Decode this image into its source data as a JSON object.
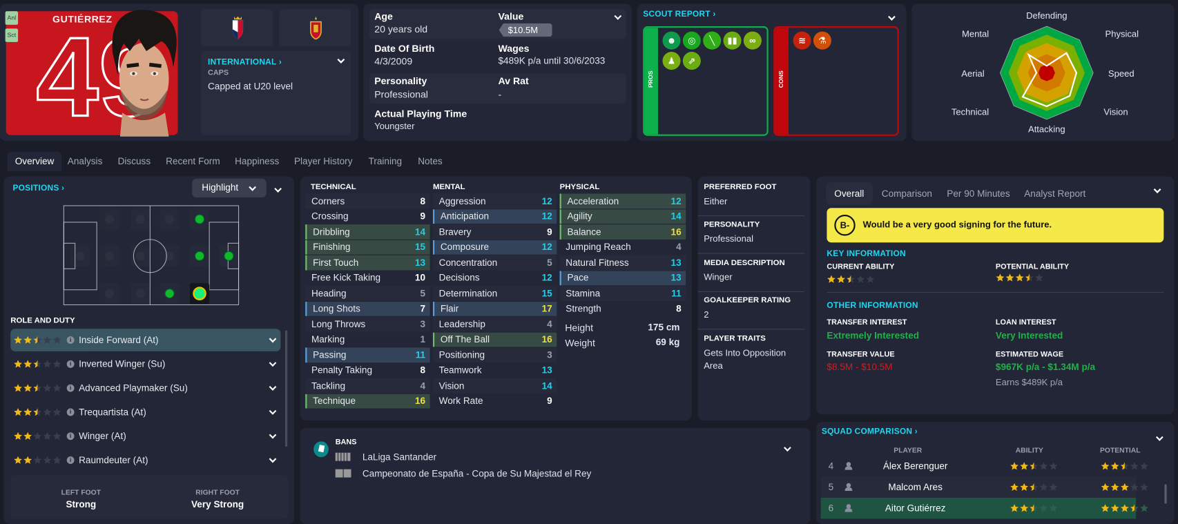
{
  "player": {
    "surname": "GUTIÉRREZ",
    "shirt_number": "49",
    "badges": [
      "Anl",
      "Sct"
    ],
    "shirt_color": "#c8161e"
  },
  "international": {
    "title": "INTERNATIONAL",
    "caps_label": "CAPS",
    "caps_value": "Capped at U20 level"
  },
  "details": {
    "age_label": "Age",
    "age": "20 years old",
    "value_label": "Value",
    "value": "$10.5M",
    "dob_label": "Date Of Birth",
    "dob": "4/3/2009",
    "wages_label": "Wages",
    "wages": "$489K p/a until 30/6/2033",
    "personality_label": "Personality",
    "personality": "Professional",
    "avrat_label": "Av Rat",
    "avrat": "-",
    "playing_time_label": "Actual Playing Time",
    "playing_time": "Youngster"
  },
  "scout_report": {
    "title": "SCOUT REPORT",
    "pros_label": "PROS",
    "cons_label": "CONS",
    "pros_icons": [
      {
        "icon": "head-icon",
        "color": "#0f9a4e"
      },
      {
        "icon": "target-icon",
        "color": "#18a71e"
      },
      {
        "icon": "pen-icon",
        "color": "#2fae18"
      },
      {
        "icon": "team-icon",
        "color": "#6aac12"
      },
      {
        "icon": "chain-icon",
        "color": "#7aae12"
      },
      {
        "icon": "foot-icon",
        "color": "#7aae12"
      },
      {
        "icon": "arrows-icon",
        "color": "#6aac12"
      }
    ],
    "cons_icons": [
      {
        "icon": "spring-icon",
        "color": "#c4220c"
      },
      {
        "icon": "flask-icon",
        "color": "#d2500a"
      }
    ]
  },
  "radar": {
    "axes": [
      "Defending",
      "Physical",
      "Speed",
      "Vision",
      "Attacking",
      "Technical",
      "Aerial",
      "Mental"
    ],
    "values": [
      0.15,
      0.6,
      0.64,
      0.7,
      0.72,
      0.73,
      0.22,
      0.55
    ],
    "ring_colors": [
      "#00a844",
      "#7cb000",
      "#d4a200",
      "#d27a00",
      "#c00000"
    ]
  },
  "tabs": [
    "Overview",
    "Analysis",
    "Discuss",
    "Recent Form",
    "Happiness",
    "Player History",
    "Training",
    "Notes"
  ],
  "positions": {
    "title": "POSITIONS",
    "highlight_label": "Highlight",
    "role_title": "ROLE AND DUTY",
    "roles": [
      {
        "name": "Inside Forward (At)",
        "stars": 2.5,
        "selected": true
      },
      {
        "name": "Inverted Winger (Su)",
        "stars": 2.5
      },
      {
        "name": "Advanced Playmaker (Su)",
        "stars": 2.5
      },
      {
        "name": "Trequartista (At)",
        "stars": 2.5
      },
      {
        "name": "Winger (At)",
        "stars": 2
      },
      {
        "name": "Raumdeuter (At)",
        "stars": 2
      }
    ],
    "left_foot_label": "LEFT FOOT",
    "left_foot": "Strong",
    "right_foot_label": "RIGHT FOOT",
    "right_foot": "Very Strong"
  },
  "attributes": {
    "technical_title": "TECHNICAL",
    "mental_title": "MENTAL",
    "physical_title": "PHYSICAL",
    "technical": [
      {
        "name": "Corners",
        "value": 8
      },
      {
        "name": "Crossing",
        "value": 9
      },
      {
        "name": "Dribbling",
        "value": 14,
        "hl": "key"
      },
      {
        "name": "Finishing",
        "value": 15,
        "hl": "key"
      },
      {
        "name": "First Touch",
        "value": 13,
        "hl": "key"
      },
      {
        "name": "Free Kick Taking",
        "value": 10
      },
      {
        "name": "Heading",
        "value": 5
      },
      {
        "name": "Long Shots",
        "value": 7,
        "hl": "pref"
      },
      {
        "name": "Long Throws",
        "value": 3
      },
      {
        "name": "Marking",
        "value": 1
      },
      {
        "name": "Passing",
        "value": 11,
        "hl": "pref"
      },
      {
        "name": "Penalty Taking",
        "value": 8
      },
      {
        "name": "Tackling",
        "value": 4
      },
      {
        "name": "Technique",
        "value": 16,
        "hl": "key"
      }
    ],
    "mental": [
      {
        "name": "Aggression",
        "value": 12
      },
      {
        "name": "Anticipation",
        "value": 12,
        "hl": "pref"
      },
      {
        "name": "Bravery",
        "value": 9
      },
      {
        "name": "Composure",
        "value": 12,
        "hl": "pref"
      },
      {
        "name": "Concentration",
        "value": 5
      },
      {
        "name": "Decisions",
        "value": 12
      },
      {
        "name": "Determination",
        "value": 15
      },
      {
        "name": "Flair",
        "value": 17,
        "hl": "pref"
      },
      {
        "name": "Leadership",
        "value": 4
      },
      {
        "name": "Off The Ball",
        "value": 16,
        "hl": "key"
      },
      {
        "name": "Positioning",
        "value": 3
      },
      {
        "name": "Teamwork",
        "value": 13
      },
      {
        "name": "Vision",
        "value": 14
      },
      {
        "name": "Work Rate",
        "value": 9
      }
    ],
    "physical": [
      {
        "name": "Acceleration",
        "value": 12,
        "hl": "key"
      },
      {
        "name": "Agility",
        "value": 14,
        "hl": "key"
      },
      {
        "name": "Balance",
        "value": 16,
        "hl": "key"
      },
      {
        "name": "Jumping Reach",
        "value": 4
      },
      {
        "name": "Natural Fitness",
        "value": 13
      },
      {
        "name": "Pace",
        "value": 13,
        "hl": "pref"
      },
      {
        "name": "Stamina",
        "value": 11
      },
      {
        "name": "Strength",
        "value": 8
      }
    ],
    "height_label": "Height",
    "height": "175 cm",
    "weight_label": "Weight",
    "weight": "69 kg"
  },
  "profile": {
    "items": [
      {
        "label": "PREFERRED FOOT",
        "value": "Either"
      },
      {
        "label": "PERSONALITY",
        "value": "Professional"
      },
      {
        "label": "MEDIA DESCRIPTION",
        "value": "Winger"
      },
      {
        "label": "GOALKEEPER RATING",
        "value": "2"
      },
      {
        "label": "PLAYER TRAITS",
        "value": "Gets Into Opposition Area"
      }
    ]
  },
  "report": {
    "tabs": [
      "Overall",
      "Comparison",
      "Per 90 Minutes",
      "Analyst Report"
    ],
    "grade": "B-",
    "verdict": "Would be a very good signing for the future.",
    "key_info_title": "KEY INFORMATION",
    "ca_label": "CURRENT ABILITY",
    "ca_stars": 2.5,
    "pa_label": "POTENTIAL ABILITY",
    "pa_stars": 3.5,
    "other_info_title": "OTHER INFORMATION",
    "transfer_interest_label": "TRANSFER INTEREST",
    "transfer_interest": "Extremely Interested",
    "loan_interest_label": "LOAN INTEREST",
    "loan_interest": "Very Interested",
    "transfer_value_label": "TRANSFER VALUE",
    "transfer_value": "$8.5M - $10.5M",
    "estimated_wage_label": "ESTIMATED WAGE",
    "estimated_wage": "$967K p/a - $1.34M p/a",
    "earns": "Earns $489K p/a"
  },
  "bans": {
    "title": "BANS",
    "items": [
      "LaLiga Santander",
      "Campeonato de España - Copa de Su Majestad el Rey"
    ]
  },
  "squad": {
    "title": "SQUAD COMPARISON",
    "headers": [
      "PLAYER",
      "ABILITY",
      "POTENTIAL"
    ],
    "rows": [
      {
        "rank": "4",
        "name": "Álex Berenguer",
        "ability": 2.5,
        "potential": 2.5
      },
      {
        "rank": "5",
        "name": "Malcom Ares",
        "ability": 2.5,
        "potential": 3
      },
      {
        "rank": "6",
        "name": "Aitor Gutiérrez",
        "ability": 2.5,
        "potential": 3.5,
        "current": true
      }
    ]
  }
}
